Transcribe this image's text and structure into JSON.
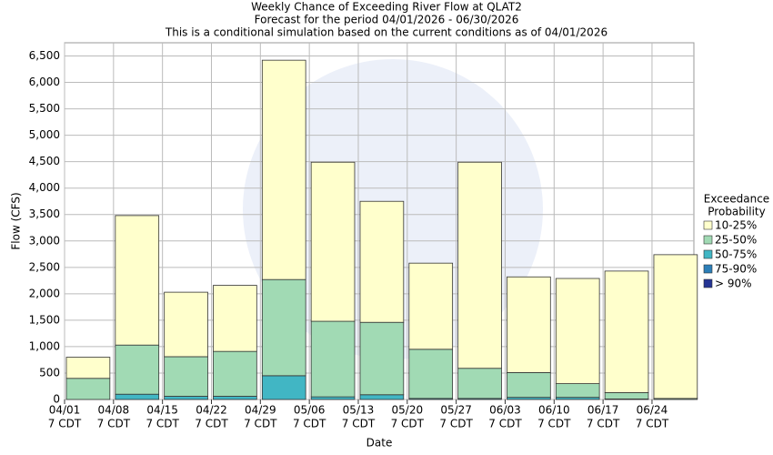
{
  "chart_data": {
    "type": "stacked_bar",
    "title": "Weekly Chance of Exceeding River Flow at QLAT2",
    "subtitle": "Forecast for the period 04/01/2026 - 06/30/2026",
    "subtitle2": "This is a conditional simulation based on the current conditions as of 04/01/2026",
    "x_label": "Date",
    "y_label": "Flow (CFS)",
    "categories": [
      "04/01",
      "04/08",
      "04/15",
      "04/22",
      "04/29",
      "05/06",
      "05/13",
      "05/20",
      "05/27",
      "06/03",
      "06/10",
      "06/17",
      "06/24"
    ],
    "category_sublabel": "7 CDT",
    "legend_title": [
      "Exceedance",
      "Probability"
    ],
    "series": [
      {
        "name": ">  90%",
        "color": "#253494",
        "values": [
          0,
          0,
          0,
          0,
          0,
          0,
          0,
          0,
          0,
          0,
          0,
          0,
          0
        ]
      },
      {
        "name": "75-90%",
        "color": "#2c7fb8",
        "values": [
          0,
          0,
          0,
          0,
          0,
          0,
          0,
          0,
          0,
          0,
          0,
          0,
          0
        ]
      },
      {
        "name": "50-75%",
        "color": "#41b6c4",
        "values": [
          0,
          100,
          60,
          60,
          450,
          50,
          90,
          20,
          20,
          40,
          40,
          10,
          0
        ]
      },
      {
        "name": "25-50%",
        "color": "#a1dab4",
        "values": [
          400,
          930,
          750,
          850,
          1820,
          1430,
          1370,
          930,
          570,
          470,
          260,
          120,
          20
        ]
      },
      {
        "name": "10-25%",
        "color": "#ffffcc",
        "values": [
          400,
          2450,
          1220,
          1250,
          4150,
          3010,
          2290,
          1630,
          3900,
          1810,
          1990,
          2300,
          2720
        ]
      }
    ],
    "ylim": [
      0,
      6750
    ],
    "yticks": [
      0,
      500,
      {
        "value": 1000,
        "label": "1,000"
      },
      {
        "value": 1500,
        "label": "1,500"
      },
      {
        "value": 2000,
        "label": "2,000"
      },
      {
        "value": 2500,
        "label": "2,500"
      },
      {
        "value": 3000,
        "label": "3,000"
      },
      {
        "value": 3500,
        "label": "3,500"
      },
      {
        "value": 4000,
        "label": "4,000"
      },
      {
        "value": 4500,
        "label": "4,500"
      },
      {
        "value": 5000,
        "label": "5,000"
      },
      {
        "value": 5500,
        "label": "5,500"
      },
      {
        "value": 6000,
        "label": "6,000"
      },
      {
        "value": 6500,
        "label": "6,500"
      }
    ],
    "grid": true
  }
}
